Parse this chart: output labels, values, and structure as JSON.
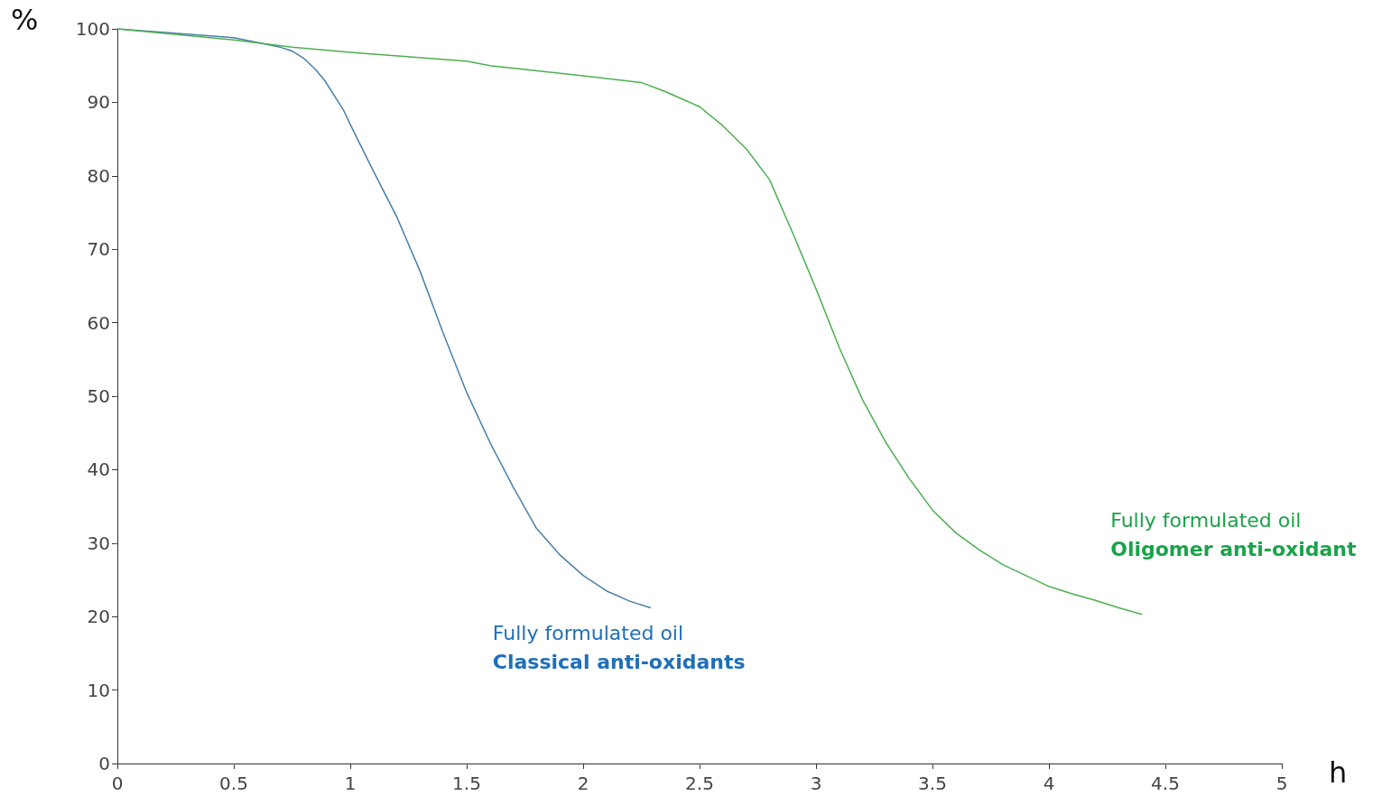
{
  "chart_data": {
    "type": "line",
    "xlabel": "h",
    "ylabel": "%",
    "xlim": [
      0,
      5
    ],
    "xticks": [
      0,
      0.5,
      1,
      1.5,
      2,
      2.5,
      3,
      3.5,
      4,
      4.5,
      5
    ],
    "ylim": [
      0,
      100
    ],
    "yticks": [
      0,
      10,
      20,
      30,
      40,
      50,
      60,
      70,
      80,
      90,
      100
    ],
    "grid": false,
    "marker": "none",
    "line_style": "solid",
    "series": [
      {
        "color": "#4a7fa8",
        "x": [
          0,
          0.5,
          0.7,
          0.75,
          0.8,
          0.85,
          0.89,
          0.97,
          1,
          1.1,
          1.2,
          1.3,
          1.4,
          1.5,
          1.6,
          1.7,
          1.8,
          1.9,
          2.0,
          2.1,
          2.2,
          2.29
        ],
        "values": [
          100,
          98.8,
          97.5,
          97,
          96,
          94.5,
          93,
          89,
          87,
          80.6,
          74.4,
          67,
          58.5,
          50.5,
          43.7,
          37.6,
          32,
          28.4,
          25.6,
          23.5,
          22.1,
          21.2
        ]
      },
      {
        "color": "#4caf50",
        "x": [
          0,
          0.5,
          0.75,
          1,
          1.5,
          1.6,
          2.0,
          2.25,
          2.35,
          2.5,
          2.6,
          2.7,
          2.8,
          2.9,
          3.0,
          3.1,
          3.2,
          3.3,
          3.4,
          3.5,
          3.6,
          3.7,
          3.8,
          3.9,
          4.0,
          4.1,
          4.2,
          4.3,
          4.4
        ],
        "values": [
          100,
          98.5,
          97.5,
          96.8,
          95.6,
          95,
          93.6,
          92.7,
          91.5,
          89.4,
          86.8,
          83.7,
          79.5,
          72.2,
          64.6,
          56.6,
          49.5,
          43.7,
          38.8,
          34.5,
          31.4,
          29.1,
          27.1,
          25.6,
          24.1,
          23.1,
          22.2,
          21.2,
          20.3
        ]
      }
    ],
    "annotations": [
      "Fully formulated oil",
      "Oligomer anti-oxidant",
      "Fully formulated oil",
      "Classical anti-oxidants"
    ]
  }
}
